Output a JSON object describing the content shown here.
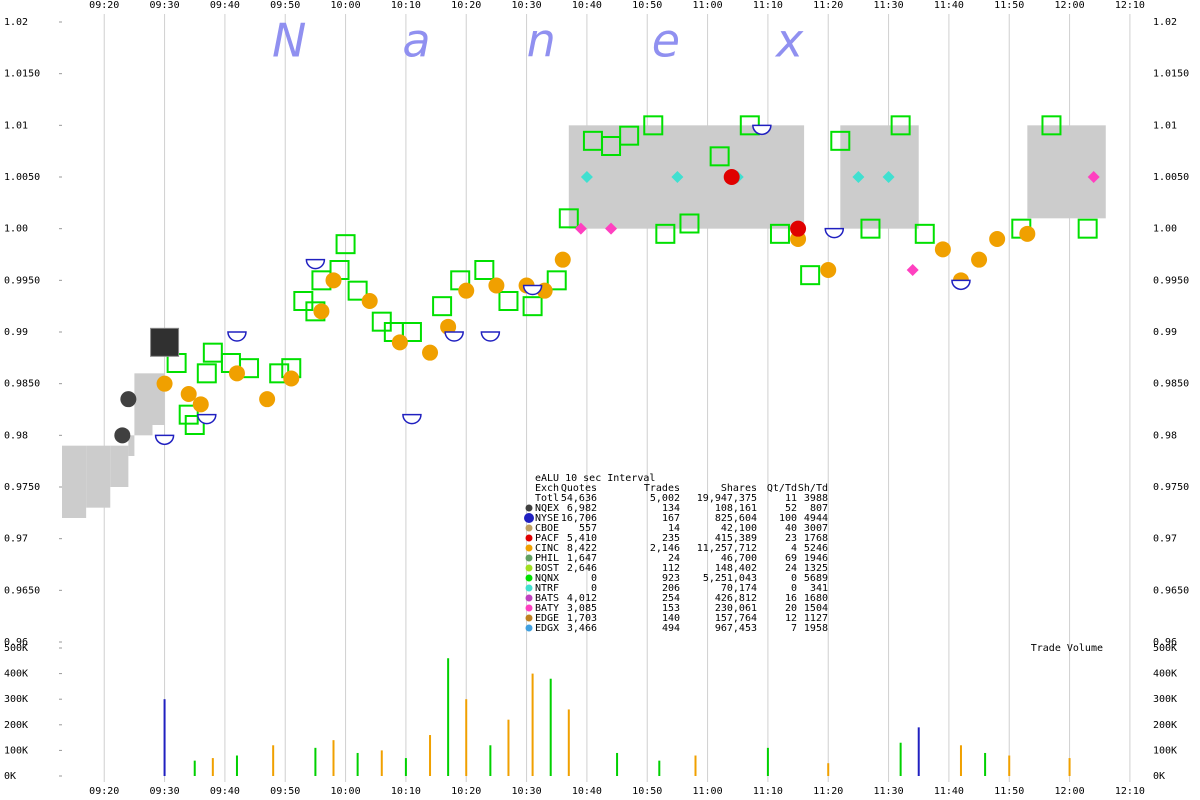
{
  "watermark": "Nanex",
  "chart_data": [
    {
      "type": "scatter",
      "xlim": [
        "09:13",
        "12:13"
      ],
      "xticks": [
        "09:20",
        "09:30",
        "09:40",
        "09:50",
        "10:00",
        "10:10",
        "10:20",
        "10:30",
        "10:40",
        "10:50",
        "11:00",
        "11:10",
        "11:20",
        "11:30",
        "11:40",
        "11:50",
        "12:00",
        "12:10"
      ],
      "ylim": [
        0.96,
        1.02
      ],
      "yticks": [
        0.96,
        {
          "value": 0.965,
          "label": "0.9650"
        },
        0.97,
        {
          "value": 0.975,
          "label": "0.9750"
        },
        0.98,
        {
          "value": 0.985,
          "label": "0.9850"
        },
        0.99,
        {
          "value": 0.995,
          "label": "0.9950"
        },
        {
          "value": 1.0,
          "label": "1.00"
        },
        {
          "value": 1.005,
          "label": "1.0050"
        },
        1.01,
        {
          "value": 1.015,
          "label": "1.0150"
        },
        1.02
      ],
      "grid": true,
      "spread": {
        "color": "#cccccc",
        "x": [
          "09:13",
          "09:17",
          "09:21",
          "09:24",
          "09:25",
          "09:28",
          "09:30",
          "10:37",
          "11:16",
          "11:22",
          "11:35",
          "11:53",
          "12:06"
        ],
        "bid": [
          0.972,
          0.973,
          0.975,
          0.978,
          0.98,
          0.981,
          null,
          1.0,
          null,
          1.0,
          null,
          1.001,
          null
        ],
        "ask": [
          0.979,
          0.979,
          0.979,
          0.98,
          0.986,
          0.986,
          null,
          1.01,
          null,
          1.01,
          null,
          1.01,
          null
        ]
      },
      "series": [
        {
          "color": "#00e000",
          "marker": "square",
          "x": [
            "09:32",
            "09:34",
            "09:35",
            "09:37",
            "09:38",
            "09:41",
            "09:44",
            "09:49",
            "09:51",
            "09:53",
            "09:55",
            "09:56",
            "09:59",
            "10:00",
            "10:02",
            "10:06",
            "10:08",
            "10:11",
            "10:16",
            "10:19",
            "10:23",
            "10:27",
            "10:31",
            "10:35",
            "10:37",
            "10:41",
            "10:44",
            "10:47",
            "10:51",
            "10:53",
            "10:57",
            "11:02",
            "11:07",
            "11:12",
            "11:17",
            "11:22",
            "11:27",
            "11:32",
            "11:36",
            "11:52",
            "11:57",
            "12:03"
          ],
          "values": [
            0.987,
            0.982,
            0.981,
            0.986,
            0.988,
            0.987,
            0.9865,
            0.986,
            0.9865,
            0.993,
            0.992,
            0.995,
            0.996,
            0.9985,
            0.994,
            0.991,
            0.99,
            0.99,
            0.9925,
            0.995,
            0.996,
            0.993,
            0.9925,
            0.995,
            1.001,
            1.0085,
            1.008,
            1.009,
            1.01,
            0.9995,
            1.0005,
            1.007,
            1.01,
            0.9995,
            0.9955,
            1.0085,
            1.0,
            1.01,
            0.9995,
            1.0,
            1.01,
            1.0
          ]
        },
        {
          "color": "#f0a000",
          "marker": "circle",
          "x": [
            "09:30",
            "09:34",
            "09:36",
            "09:42",
            "09:47",
            "09:51",
            "09:56",
            "09:58",
            "10:04",
            "10:09",
            "10:14",
            "10:17",
            "10:20",
            "10:25",
            "10:30",
            "10:33",
            "10:36",
            "11:15",
            "11:20",
            "11:39",
            "11:42",
            "11:45",
            "11:48",
            "11:53"
          ],
          "values": [
            0.985,
            0.984,
            0.983,
            0.986,
            0.9835,
            0.9855,
            0.992,
            0.995,
            0.993,
            0.989,
            0.988,
            0.9905,
            0.994,
            0.9945,
            0.9945,
            0.994,
            0.997,
            0.999,
            0.996,
            0.998,
            0.995,
            0.997,
            0.999,
            0.9995
          ]
        },
        {
          "color": "#2020c0",
          "marker": "semicircle",
          "x": [
            "09:30",
            "09:37",
            "09:42",
            "09:55",
            "10:11",
            "10:18",
            "10:24",
            "10:31",
            "11:09",
            "11:21",
            "11:42"
          ],
          "values": [
            0.98,
            0.982,
            0.99,
            0.997,
            0.982,
            0.99,
            0.99,
            0.9945,
            1.01,
            1.0,
            0.995
          ]
        },
        {
          "color": "#404040",
          "marker": "circle",
          "x": [
            "09:23",
            "09:24"
          ],
          "values": [
            0.98,
            0.9835
          ]
        },
        {
          "color": "#303030",
          "marker": "block",
          "x": [
            "09:30"
          ],
          "values": [
            0.989
          ]
        },
        {
          "color": "#ff40c0",
          "marker": "diamond",
          "x": [
            "10:39",
            "10:44",
            "11:34",
            "12:04"
          ],
          "values": [
            1.0,
            1.0,
            0.996,
            1.005
          ]
        },
        {
          "color": "#40e0d0",
          "marker": "diamond",
          "x": [
            "10:40",
            "10:55",
            "11:05",
            "11:25",
            "11:30"
          ],
          "values": [
            1.005,
            1.005,
            1.005,
            1.005,
            1.005
          ]
        },
        {
          "color": "#e00000",
          "marker": "circle",
          "x": [
            "11:04",
            "11:15"
          ],
          "values": [
            1.005,
            1.0
          ]
        }
      ]
    },
    {
      "type": "bar",
      "title": "Trade Volume",
      "xlim": [
        "09:13",
        "12:13"
      ],
      "ylim": [
        0,
        500000
      ],
      "yticks": [
        {
          "value": 0,
          "label": "0K"
        },
        {
          "value": 100000,
          "label": "100K"
        },
        {
          "value": 200000,
          "label": "200K"
        },
        {
          "value": 300000,
          "label": "300K"
        },
        {
          "value": 400000,
          "label": "400K"
        },
        {
          "value": 500000,
          "label": "500K"
        }
      ],
      "series": [
        {
          "color": "#2020c0",
          "x": [
            "09:30",
            "11:35"
          ],
          "values": [
            300000,
            190000
          ]
        },
        {
          "color": "#00d000",
          "x": [
            "09:35",
            "09:42",
            "09:55",
            "10:02",
            "10:10",
            "10:17",
            "10:24",
            "10:34",
            "10:45",
            "10:52",
            "11:10",
            "11:32",
            "11:46"
          ],
          "values": [
            60000,
            80000,
            110000,
            90000,
            70000,
            460000,
            120000,
            380000,
            90000,
            60000,
            110000,
            130000,
            90000
          ]
        },
        {
          "color": "#f0a000",
          "x": [
            "09:38",
            "09:48",
            "09:58",
            "10:06",
            "10:14",
            "10:20",
            "10:27",
            "10:31",
            "10:37",
            "10:58",
            "11:20",
            "11:42",
            "11:50",
            "12:00"
          ],
          "values": [
            70000,
            120000,
            140000,
            100000,
            160000,
            300000,
            220000,
            400000,
            260000,
            80000,
            50000,
            120000,
            80000,
            70000
          ]
        }
      ]
    }
  ],
  "stats_table": {
    "title": "eALU 10 sec Interval",
    "header": [
      "Exch",
      "Quotes",
      "Trades",
      "Shares",
      "Qt/Td",
      "Sh/Td"
    ],
    "colors": [
      null,
      "#404040",
      "#2020c0",
      "#c0a060",
      "#e00000",
      "#f0a000",
      "#60a060",
      "#a0e020",
      "#00e000",
      "#40e0d0",
      "#c040c0",
      "#ff40c0",
      "#c08020",
      "#40a0e0"
    ],
    "rows": [
      [
        "Totl",
        "54,636",
        "5,002",
        "19,947,375",
        "11",
        "3988"
      ],
      [
        "NQEX",
        "6,982",
        "134",
        "108,161",
        "52",
        "807"
      ],
      [
        "NYSE",
        "16,706",
        "167",
        "825,604",
        "100",
        "4944"
      ],
      [
        "CBOE",
        "557",
        "14",
        "42,100",
        "40",
        "3007"
      ],
      [
        "PACF",
        "5,410",
        "235",
        "415,389",
        "23",
        "1768"
      ],
      [
        "CINC",
        "8,422",
        "2,146",
        "11,257,712",
        "4",
        "5246"
      ],
      [
        "PHIL",
        "1,647",
        "24",
        "46,700",
        "69",
        "1946"
      ],
      [
        "BOST",
        "2,646",
        "112",
        "148,402",
        "24",
        "1325"
      ],
      [
        "NQNX",
        "0",
        "923",
        "5,251,043",
        "0",
        "5689"
      ],
      [
        "NTRF",
        "0",
        "206",
        "70,174",
        "0",
        "341"
      ],
      [
        "BATS",
        "4,012",
        "254",
        "426,812",
        "16",
        "1680"
      ],
      [
        "BATY",
        "3,085",
        "153",
        "230,061",
        "20",
        "1504"
      ],
      [
        "EDGE",
        "1,703",
        "140",
        "157,764",
        "12",
        "1127"
      ],
      [
        "EDGX",
        "3,466",
        "494",
        "967,453",
        "7",
        "1958"
      ]
    ]
  }
}
